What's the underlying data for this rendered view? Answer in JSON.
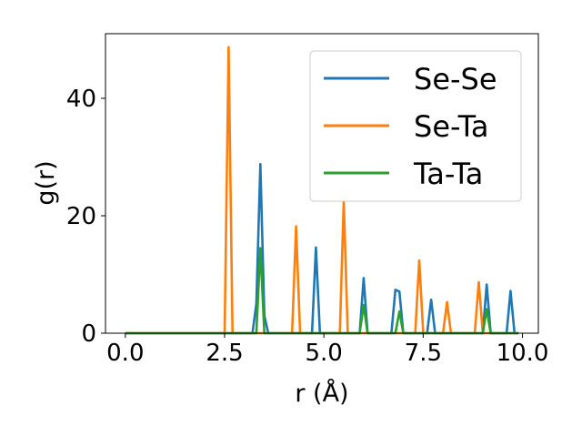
{
  "chart_data": {
    "type": "line",
    "xlabel": "r (Å)",
    "ylabel": "g(r)",
    "xlim": [
      -0.5,
      10.4
    ],
    "ylim": [
      0,
      51
    ],
    "xticks": [
      0.0,
      2.5,
      5.0,
      7.5,
      10.0
    ],
    "xtick_labels": [
      "0.0",
      "2.5",
      "5.0",
      "7.5",
      "10.0"
    ],
    "yticks": [
      0,
      20,
      40
    ],
    "ytick_labels": [
      "0",
      "20",
      "40"
    ],
    "grid": false,
    "legend_position": "top-right",
    "series": [
      {
        "name": "Se-Se",
        "color": "#1f77b4",
        "x": [
          0.0,
          3.2,
          3.3,
          3.4,
          3.5,
          3.6,
          4.7,
          4.8,
          4.9,
          5.9,
          6.0,
          6.1,
          6.7,
          6.8,
          6.9,
          7.0,
          7.6,
          7.7,
          7.8,
          9.0,
          9.1,
          9.2,
          9.6,
          9.7,
          9.8,
          9.9
        ],
        "y": [
          0,
          0,
          5,
          28.8,
          3,
          0,
          0,
          14.6,
          0,
          0,
          9.4,
          0,
          0,
          7.4,
          7.1,
          0,
          0,
          5.7,
          0,
          0,
          8.3,
          0,
          0,
          7.2,
          0,
          0
        ]
      },
      {
        "name": "Se-Ta",
        "color": "#ff7f0e",
        "x": [
          0.0,
          2.5,
          2.6,
          2.7,
          4.2,
          4.3,
          4.4,
          5.4,
          5.5,
          5.6,
          7.3,
          7.4,
          7.5,
          8.0,
          8.1,
          8.2,
          8.8,
          8.9,
          9.0,
          9.9
        ],
        "y": [
          0,
          0,
          48.7,
          0,
          0,
          18.2,
          0,
          0,
          22.5,
          0,
          0,
          12.4,
          0,
          0,
          5.3,
          0,
          0,
          8.7,
          0,
          0
        ]
      },
      {
        "name": "Ta-Ta",
        "color": "#2ca02c",
        "x": [
          0.0,
          3.3,
          3.4,
          3.5,
          5.9,
          6.0,
          6.1,
          6.8,
          6.9,
          7.0,
          9.0,
          9.1,
          9.2,
          9.9
        ],
        "y": [
          0,
          0,
          14.5,
          0,
          0,
          4.8,
          0,
          0,
          3.7,
          0,
          0,
          4.1,
          0,
          0
        ]
      }
    ]
  }
}
